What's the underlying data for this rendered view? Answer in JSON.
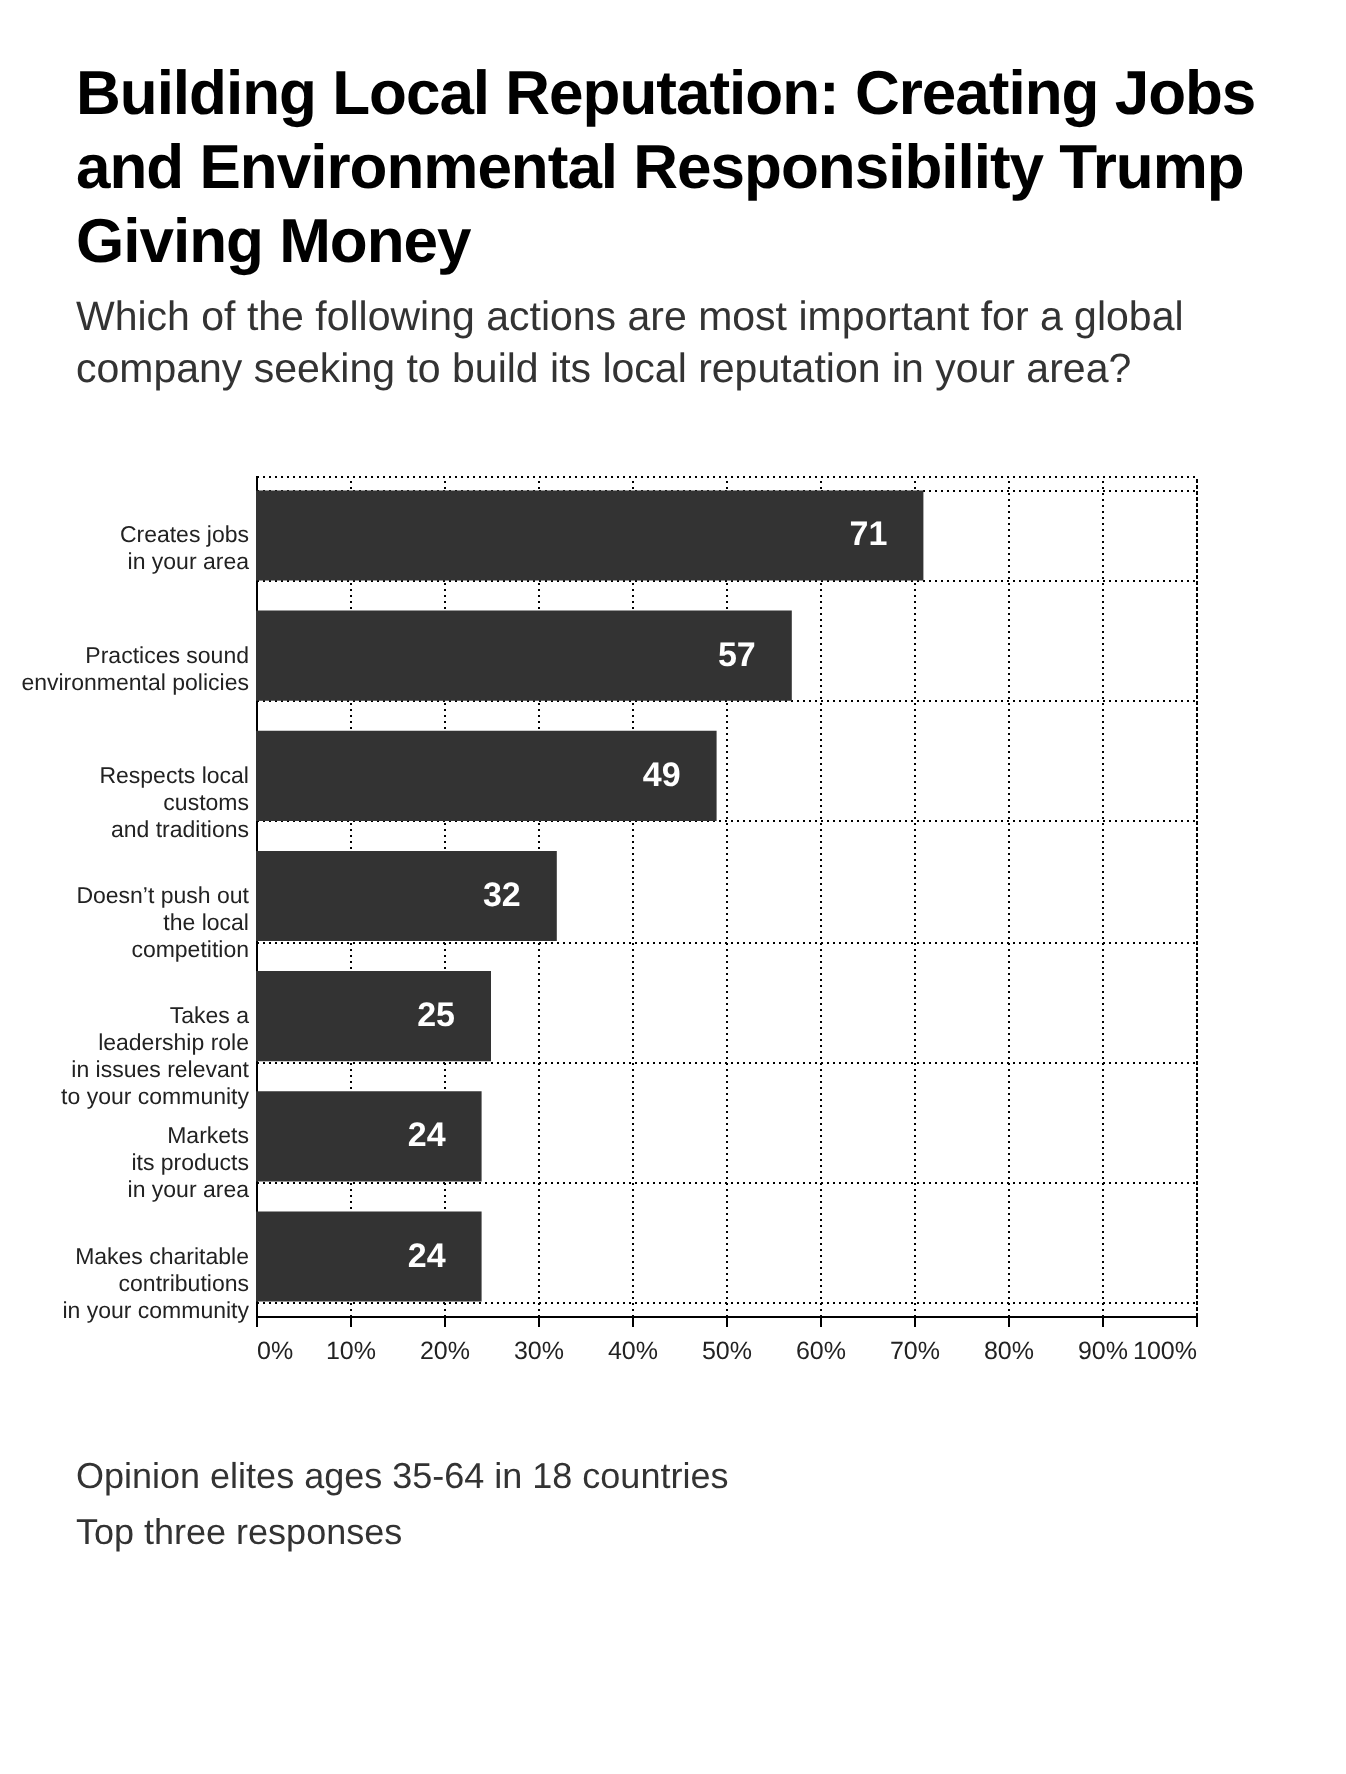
{
  "chart_data": {
    "type": "bar",
    "orientation": "horizontal",
    "title": "Building Local Reputation: Creating Jobs and Environmental Responsibility Trump Giving Money",
    "subtitle": "Which of the following actions are most important for a global company seeking to build its local reputation in your area?",
    "categories": [
      "Creates jobs\nin your area",
      "Practices sound\nenvironmental policies",
      "Respects local\ncustoms\nand traditions",
      "Doesn’t push out\nthe local\ncompetition",
      "Takes a\nleadership role\nin issues relevant\nto your community",
      "Markets\nits products\nin your area",
      "Makes charitable\ncontributions\nin your community"
    ],
    "values": [
      71,
      57,
      49,
      32,
      25,
      24,
      24
    ],
    "color": "#333333",
    "data_labels": true,
    "xlim": [
      0,
      100
    ],
    "xticks": [
      {
        "value": 0,
        "label": "0%"
      },
      {
        "value": 10,
        "label": "10%"
      },
      {
        "value": 20,
        "label": "20%"
      },
      {
        "value": 30,
        "label": "30%"
      },
      {
        "value": 40,
        "label": "40%"
      },
      {
        "value": 50,
        "label": "50%"
      },
      {
        "value": 60,
        "label": "60%"
      },
      {
        "value": 70,
        "label": "70%"
      },
      {
        "value": 80,
        "label": "80%"
      },
      {
        "value": 90,
        "label": "90%"
      },
      {
        "value": 100,
        "label": "100%"
      }
    ],
    "grid": true,
    "annotations": [
      "Opinion elites ages 35-64 in 18 countries",
      "Top three responses"
    ]
  }
}
